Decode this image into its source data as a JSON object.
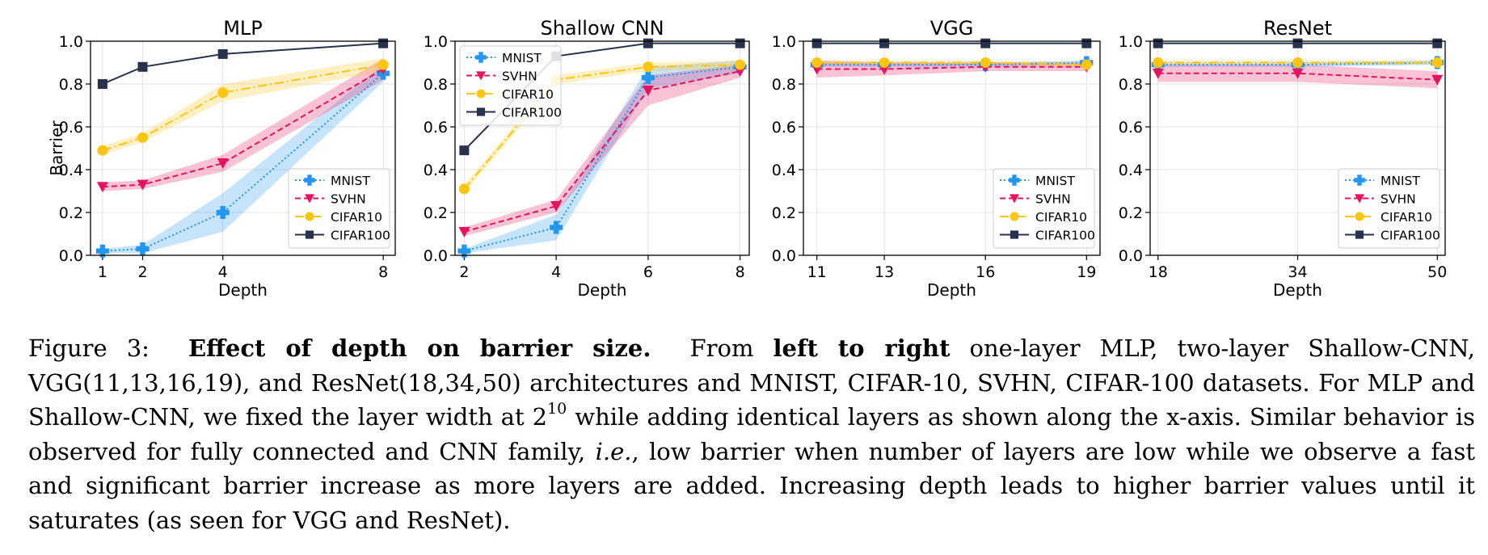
{
  "colors": {
    "MNIST": "#2196f3",
    "SVHN": "#e8135e",
    "CIFAR10": "#fcc512",
    "CIFAR100": "#28324c"
  },
  "chart_data": [
    {
      "type": "line",
      "title": "MLP",
      "xlabel": "Depth",
      "ylabel": "Barrier",
      "ylim": [
        0.0,
        1.0
      ],
      "yticks": [
        "0.0",
        "0.2",
        "0.4",
        "0.6",
        "0.8",
        "1.0"
      ],
      "x": [
        1,
        2,
        4,
        8
      ],
      "xticks": [
        "1",
        "2",
        "4",
        "8"
      ],
      "grid": true,
      "legend": "lower right",
      "series": [
        {
          "name": "MNIST",
          "values": [
            0.02,
            0.03,
            0.2,
            0.85
          ],
          "band": [
            0.01,
            0.02,
            0.09,
            0.04
          ]
        },
        {
          "name": "SVHN",
          "values": [
            0.32,
            0.33,
            0.43,
            0.87
          ],
          "band": [
            0.02,
            0.02,
            0.04,
            0.05
          ]
        },
        {
          "name": "CIFAR10",
          "values": [
            0.49,
            0.55,
            0.76,
            0.89
          ],
          "band": [
            0.02,
            0.02,
            0.04,
            0.03
          ]
        },
        {
          "name": "CIFAR100",
          "values": [
            0.8,
            0.88,
            0.94,
            0.99
          ],
          "band": [
            0.0,
            0.0,
            0.0,
            0.0
          ]
        }
      ]
    },
    {
      "type": "line",
      "title": "Shallow CNN",
      "xlabel": "Depth",
      "ylabel": "",
      "ylim": [
        0.0,
        1.0
      ],
      "yticks": [
        "0.0",
        "0.2",
        "0.4",
        "0.6",
        "0.8",
        "1.0"
      ],
      "x": [
        2,
        4,
        6,
        8
      ],
      "xticks": [
        "2",
        "4",
        "6",
        "8"
      ],
      "grid": true,
      "legend": "upper left",
      "series": [
        {
          "name": "MNIST",
          "values": [
            0.02,
            0.13,
            0.83,
            0.88
          ],
          "band": [
            0.01,
            0.06,
            0.05,
            0.03
          ]
        },
        {
          "name": "SVHN",
          "values": [
            0.11,
            0.23,
            0.77,
            0.86
          ],
          "band": [
            0.02,
            0.03,
            0.07,
            0.03
          ]
        },
        {
          "name": "CIFAR10",
          "values": [
            0.31,
            0.82,
            0.88,
            0.89
          ],
          "band": [
            0.02,
            0.02,
            0.02,
            0.02
          ]
        },
        {
          "name": "CIFAR100",
          "values": [
            0.49,
            0.93,
            0.99,
            0.99
          ],
          "band": [
            0.0,
            0.0,
            0.0,
            0.0
          ]
        }
      ]
    },
    {
      "type": "line",
      "title": "VGG",
      "xlabel": "Depth",
      "ylabel": "",
      "ylim": [
        0.0,
        1.0
      ],
      "yticks": [
        "0.0",
        "0.2",
        "0.4",
        "0.6",
        "0.8",
        "1.0"
      ],
      "x": [
        11,
        13,
        16,
        19
      ],
      "xticks": [
        "11",
        "13",
        "16",
        "19"
      ],
      "grid": true,
      "legend": "lower right",
      "series": [
        {
          "name": "MNIST",
          "values": [
            0.89,
            0.89,
            0.89,
            0.9
          ],
          "band": [
            0.01,
            0.01,
            0.01,
            0.01
          ]
        },
        {
          "name": "SVHN",
          "values": [
            0.87,
            0.87,
            0.88,
            0.88
          ],
          "band": [
            0.04,
            0.03,
            0.02,
            0.02
          ]
        },
        {
          "name": "CIFAR10",
          "values": [
            0.9,
            0.9,
            0.9,
            0.89
          ],
          "band": [
            0.01,
            0.01,
            0.01,
            0.01
          ]
        },
        {
          "name": "CIFAR100",
          "values": [
            0.99,
            0.99,
            0.99,
            0.99
          ],
          "band": [
            0.0,
            0.0,
            0.0,
            0.0
          ]
        }
      ]
    },
    {
      "type": "line",
      "title": "ResNet",
      "xlabel": "Depth",
      "ylabel": "",
      "ylim": [
        0.0,
        1.0
      ],
      "yticks": [
        "0.0",
        "0.2",
        "0.4",
        "0.6",
        "0.8",
        "1.0"
      ],
      "x": [
        18,
        34,
        50
      ],
      "xticks": [
        "18",
        "34",
        "50"
      ],
      "grid": true,
      "legend": "lower right",
      "series": [
        {
          "name": "MNIST",
          "values": [
            0.89,
            0.89,
            0.9
          ],
          "band": [
            0.01,
            0.01,
            0.01
          ]
        },
        {
          "name": "SVHN",
          "values": [
            0.85,
            0.85,
            0.82
          ],
          "band": [
            0.04,
            0.04,
            0.04
          ]
        },
        {
          "name": "CIFAR10",
          "values": [
            0.9,
            0.9,
            0.9
          ],
          "band": [
            0.01,
            0.01,
            0.01
          ]
        },
        {
          "name": "CIFAR100",
          "values": [
            0.99,
            0.99,
            0.99
          ],
          "band": [
            0.0,
            0.0,
            0.0
          ]
        }
      ]
    }
  ],
  "caption": {
    "label": "Figure 3:",
    "title": "Effect of depth on barrier size.",
    "t1": "From",
    "b1": "left to right",
    "t2": "one-layer MLP, two-layer Shallow-CNN, VGG(11,13,16,19), and ResNet(18,34,50) architectures and MNIST, CIFAR-10, SVHN, CIFAR-100 datasets. For MLP and Shallow-CNN, we fixed the layer width at 2",
    "exp": "10",
    "t3": "while adding identical layers as shown along the x-axis. Similar behavior is observed for fully connected and CNN family,",
    "ie": "i.e.",
    "t4": ", low barrier when number of layers are low while we observe a fast and significant barrier increase as more layers are added. Increasing depth leads to higher barrier values until it saturates (as seen for VGG and ResNet)."
  }
}
